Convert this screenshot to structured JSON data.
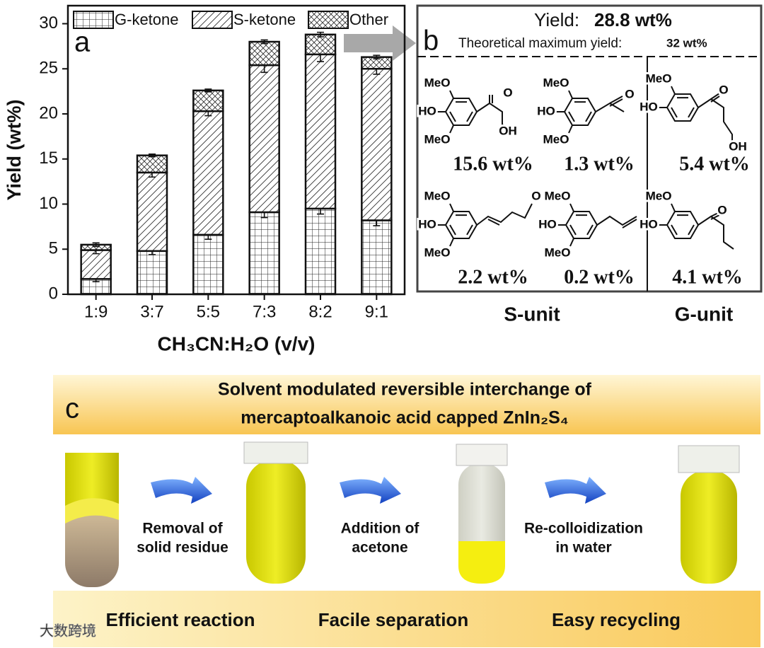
{
  "chart_data": {
    "type": "stacked_bar",
    "panel_label": "a",
    "categories": [
      "1:9",
      "3:7",
      "5:5",
      "7:3",
      "8:2",
      "9:1"
    ],
    "series": [
      {
        "name": "G-ketone",
        "pattern": "grid",
        "values": [
          1.7,
          4.8,
          6.6,
          9.1,
          9.5,
          8.2
        ],
        "errors": [
          0.3,
          0.4,
          0.5,
          0.6,
          0.6,
          0.6
        ]
      },
      {
        "name": "S-ketone",
        "pattern": "hatch",
        "values": [
          3.2,
          8.7,
          13.7,
          16.3,
          17.1,
          16.8
        ],
        "errors": [
          0.4,
          0.5,
          0.5,
          0.8,
          0.8,
          0.6
        ]
      },
      {
        "name": "Other",
        "pattern": "cross",
        "values": [
          0.6,
          1.9,
          2.3,
          2.6,
          2.2,
          1.3
        ],
        "errors": [
          0.2,
          0.15,
          0.15,
          0.2,
          0.25,
          0.2
        ]
      }
    ],
    "ylim": [
      0,
      32
    ],
    "yticks": [
      0,
      5,
      10,
      15,
      20,
      25,
      30
    ],
    "ylabel": "Yield (wt%)",
    "xlabel": "CH₃CN:H₂O (v/v)"
  },
  "panel_b": {
    "label": "b",
    "yield_label": "Yield:",
    "yield_value": "28.8 wt%",
    "max_label": "Theoretical maximum yield:",
    "max_value": "32 wt%",
    "compounds": [
      {
        "labels": [
          "MeO",
          "HO",
          "MeO",
          "O",
          "OH"
        ],
        "yield": "15.6 wt%"
      },
      {
        "labels": [
          "MeO",
          "HO",
          "MeO",
          "O"
        ],
        "yield": "1.3 wt%"
      },
      {
        "labels": [
          "MeO",
          "HO",
          "O",
          "OH"
        ],
        "yield": "5.4 wt%"
      },
      {
        "labels": [
          "MeO",
          "HO",
          "MeO",
          "O"
        ],
        "yield": "2.2 wt%"
      },
      {
        "labels": [
          "MeO",
          "HO",
          "MeO"
        ],
        "yield": "0.2 wt%"
      },
      {
        "labels": [
          "MeO",
          "HO",
          "O"
        ],
        "yield": "4.1 wt%"
      }
    ],
    "groups": [
      "S-unit",
      "G-unit"
    ]
  },
  "panel_c": {
    "label": "c",
    "title": [
      "Solvent modulated reversible interchange of",
      "mercaptoalkanoic acid capped ZnIn₂S₄"
    ],
    "steps": [
      [
        "Removal of",
        "solid residue"
      ],
      [
        "Addition of",
        "acetone"
      ],
      [
        "Re-colloidization",
        "in water"
      ]
    ],
    "footer": [
      "Efficient reaction",
      "Facile separation",
      "Easy recycling"
    ],
    "watermark": "大数跨境"
  }
}
